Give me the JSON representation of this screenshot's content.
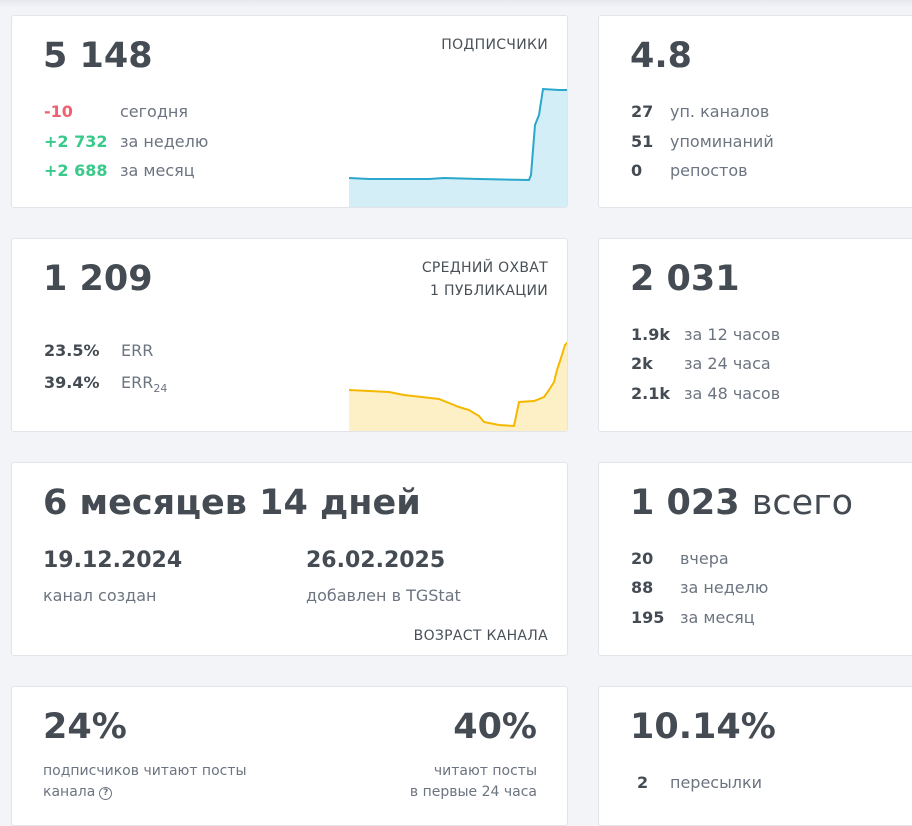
{
  "subscribers": {
    "value": "5 148",
    "caption": "ПОДПИСЧИКИ",
    "rows": [
      {
        "value": "-10",
        "label": "сегодня"
      },
      {
        "value": "+2 732",
        "label": "за неделю"
      },
      {
        "value": "+2 688",
        "label": "за месяц"
      }
    ]
  },
  "citation": {
    "value": "4.8",
    "rows": [
      {
        "value": "27",
        "label": "уп. каналов"
      },
      {
        "value": "51",
        "label": "упоминаний"
      },
      {
        "value": "0",
        "label": "репостов"
      }
    ]
  },
  "reach": {
    "value": "1 209",
    "caption1": "СРЕДНИЙ ОХВАТ",
    "caption2": "1 ПУБЛИКАЦИИ",
    "err": {
      "value": "23.5%",
      "label": "ERR"
    },
    "err24": {
      "value": "39.4%",
      "label": "ERR",
      "sub": "24"
    }
  },
  "views": {
    "value": "2 031",
    "rows": [
      {
        "value": "1.9k",
        "label": "за 12 часов"
      },
      {
        "value": "2k",
        "label": "за 24 часа"
      },
      {
        "value": "2.1k",
        "label": "за 48 часов"
      }
    ]
  },
  "age": {
    "value": "6 месяцев 14 дней",
    "created_date": "19.12.2024",
    "created_label": "канал создан",
    "added_date": "26.02.2025",
    "added_label": "добавлен в TGStat",
    "caption": "ВОЗРАСТ КАНАЛА"
  },
  "posts": {
    "value": "1 023",
    "suffix": "всего",
    "rows": [
      {
        "value": "20",
        "label": "вчера"
      },
      {
        "value": "88",
        "label": "за неделю"
      },
      {
        "value": "195",
        "label": "за месяц"
      }
    ]
  },
  "readers": {
    "left_value": "24%",
    "left_label_1": "подписчиков читают посты",
    "left_label_2": "канала",
    "left_help_icon": "?",
    "right_value": "40%",
    "right_label_1": "читают посты",
    "right_label_2": "в первые 24 часа"
  },
  "forwards": {
    "value": "10.14%",
    "rows": [
      {
        "value": "2",
        "label": "пересылки"
      }
    ]
  },
  "colors": {
    "subscribers_line": "#2aa7cc",
    "subscribers_fill": "#d3eef7",
    "reach_line": "#f5b800",
    "reach_fill": "#fdf0c7",
    "negative": "#f06070",
    "positive": "#38c98b"
  }
}
